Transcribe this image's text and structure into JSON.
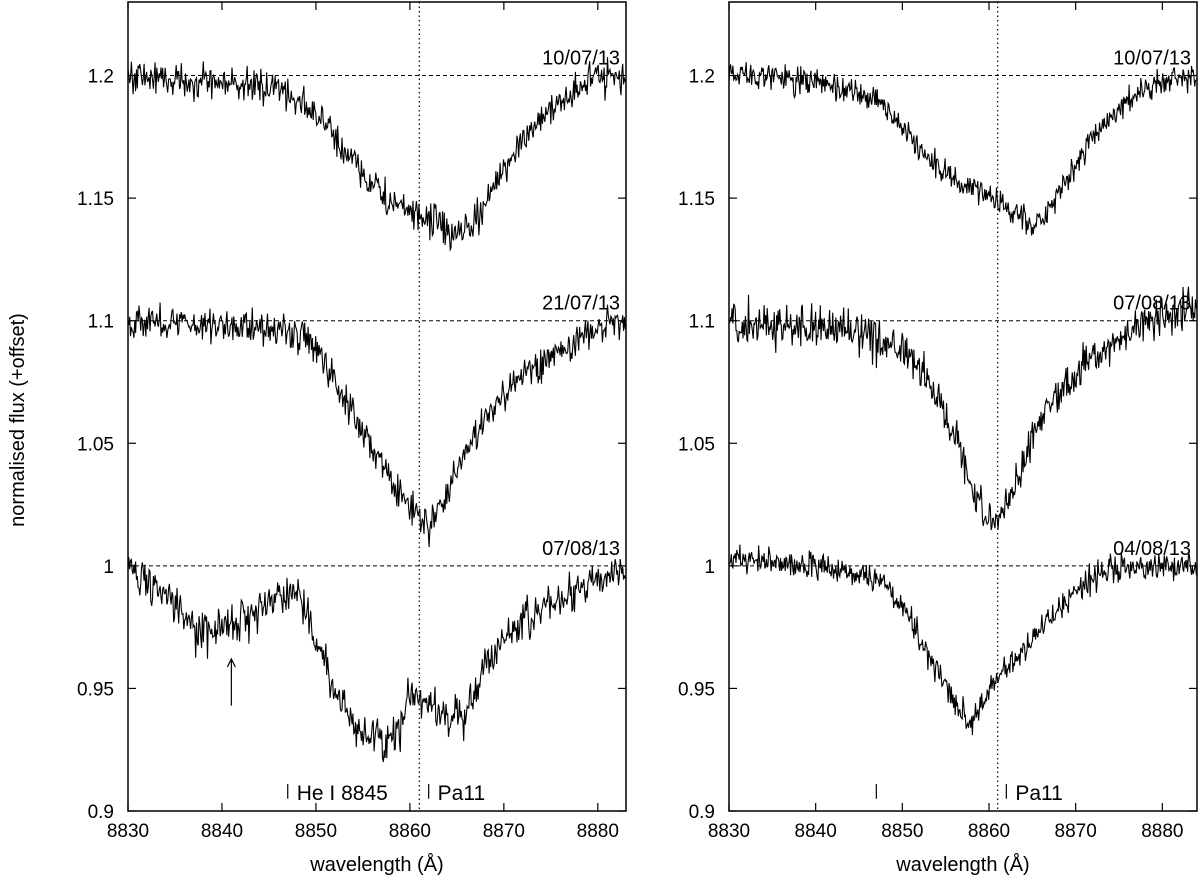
{
  "figure": {
    "ylabel": "normalised flux (+offset)"
  },
  "chart_data": [
    {
      "type": "line",
      "xlabel": "wavelength (Å)",
      "xlim": [
        8830,
        8883
      ],
      "ylim": [
        0.9,
        1.23
      ],
      "xticks": [
        8830,
        8840,
        8850,
        8860,
        8870,
        8880
      ],
      "yticks": [
        0.9,
        0.95,
        1.0,
        1.05,
        1.1,
        1.15,
        1.2
      ],
      "ytick_labels": [
        "0.9",
        "0.95",
        "1",
        "1.05",
        "1.1",
        "1.15",
        "1.2"
      ],
      "reference_lines_y": [
        1.0,
        1.1,
        1.2
      ],
      "vline_x": 8861.0,
      "line_markers": [
        {
          "x": 8847,
          "label": "He I 8845"
        },
        {
          "x": 8862,
          "label": "Pa11"
        }
      ],
      "arrow": {
        "x": 8841,
        "y_from": 0.943,
        "y_to": 0.962
      },
      "series": [
        {
          "name": "10/07/13",
          "offset": 1.2,
          "profile": [
            [
              8830,
              0.0
            ],
            [
              8846,
              -0.005
            ],
            [
              8849,
              -0.012
            ],
            [
              8852,
              -0.025
            ],
            [
              8855,
              -0.04
            ],
            [
              8858,
              -0.052
            ],
            [
              8861,
              -0.058
            ],
            [
              8863,
              -0.06
            ],
            [
              8865,
              -0.066
            ],
            [
              8867,
              -0.06
            ],
            [
              8869,
              -0.045
            ],
            [
              8872,
              -0.025
            ],
            [
              8876,
              -0.01
            ],
            [
              8879,
              -0.002
            ],
            [
              8883,
              0.0
            ]
          ],
          "noise": 0.005
        },
        {
          "name": "21/07/13",
          "offset": 1.1,
          "profile": [
            [
              8830,
              0.0
            ],
            [
              8847,
              -0.003
            ],
            [
              8850,
              -0.012
            ],
            [
              8853,
              -0.03
            ],
            [
              8856,
              -0.052
            ],
            [
              8859,
              -0.072
            ],
            [
              8861,
              -0.08
            ],
            [
              8862,
              -0.085
            ],
            [
              8863,
              -0.078
            ],
            [
              8865,
              -0.06
            ],
            [
              8868,
              -0.04
            ],
            [
              8872,
              -0.022
            ],
            [
              8877,
              -0.01
            ],
            [
              8880,
              -0.003
            ],
            [
              8883,
              0.0
            ]
          ],
          "noise": 0.005
        },
        {
          "name": "07/08/13",
          "offset": 1.0,
          "profile": [
            [
              8830,
              0.0
            ],
            [
              8834,
              -0.012
            ],
            [
              8837,
              -0.027
            ],
            [
              8839,
              -0.028
            ],
            [
              8842,
              -0.022
            ],
            [
              8846,
              -0.012
            ],
            [
              8848,
              -0.01
            ],
            [
              8850,
              -0.03
            ],
            [
              8852,
              -0.052
            ],
            [
              8855,
              -0.068
            ],
            [
              8857,
              -0.072
            ],
            [
              8859,
              -0.065
            ],
            [
              8860,
              -0.052
            ],
            [
              8862,
              -0.055
            ],
            [
              8864,
              -0.06
            ],
            [
              8866,
              -0.062
            ],
            [
              8868,
              -0.04
            ],
            [
              8871,
              -0.025
            ],
            [
              8875,
              -0.015
            ],
            [
              8879,
              -0.008
            ],
            [
              8883,
              0.0
            ]
          ],
          "noise": 0.006
        }
      ]
    },
    {
      "type": "line",
      "xlabel": "wavelength (Å)",
      "xlim": [
        8830,
        8884
      ],
      "ylim": [
        0.9,
        1.23
      ],
      "xticks": [
        8830,
        8840,
        8850,
        8860,
        8870,
        8880
      ],
      "yticks": [
        0.9,
        0.95,
        1.0,
        1.05,
        1.1,
        1.15,
        1.2
      ],
      "ytick_labels": [
        "0.9",
        "0.95",
        "1",
        "1.05",
        "1.1",
        "1.15",
        "1.2"
      ],
      "reference_lines_y": [
        1.0,
        1.1,
        1.2
      ],
      "vline_x": 8861.0,
      "line_markers": [
        {
          "x": 8847,
          "label": ""
        },
        {
          "x": 8862,
          "label": "Pa11"
        }
      ],
      "series": [
        {
          "name": "10/07/13",
          "offset": 1.2,
          "profile": [
            [
              8830,
              0.002
            ],
            [
              8840,
              -0.003
            ],
            [
              8847,
              -0.01
            ],
            [
              8850,
              -0.02
            ],
            [
              8853,
              -0.035
            ],
            [
              8857,
              -0.045
            ],
            [
              8860,
              -0.05
            ],
            [
              8863,
              -0.055
            ],
            [
              8865,
              -0.062
            ],
            [
              8867,
              -0.055
            ],
            [
              8869,
              -0.042
            ],
            [
              8872,
              -0.025
            ],
            [
              8876,
              -0.01
            ],
            [
              8880,
              -0.002
            ],
            [
              8884,
              0.0
            ]
          ],
          "noise": 0.004
        },
        {
          "name": "07/08/13",
          "offset": 1.1,
          "profile": [
            [
              8830,
              0.0
            ],
            [
              8845,
              -0.005
            ],
            [
              8850,
              -0.012
            ],
            [
              8853,
              -0.025
            ],
            [
              8856,
              -0.045
            ],
            [
              8858,
              -0.068
            ],
            [
              8860,
              -0.08
            ],
            [
              8862,
              -0.075
            ],
            [
              8864,
              -0.06
            ],
            [
              8865,
              -0.045
            ],
            [
              8868,
              -0.03
            ],
            [
              8872,
              -0.015
            ],
            [
              8876,
              -0.005
            ],
            [
              8880,
              0.003
            ],
            [
              8884,
              0.005
            ]
          ],
          "noise": 0.006
        },
        {
          "name": "04/08/13",
          "offset": 1.0,
          "profile": [
            [
              8830,
              0.003
            ],
            [
              8844,
              -0.002
            ],
            [
              8848,
              -0.008
            ],
            [
              8851,
              -0.022
            ],
            [
              8854,
              -0.042
            ],
            [
              8856,
              -0.055
            ],
            [
              8858,
              -0.065
            ],
            [
              8859,
              -0.058
            ],
            [
              8860,
              -0.05
            ],
            [
              8862,
              -0.042
            ],
            [
              8865,
              -0.03
            ],
            [
              8868,
              -0.018
            ],
            [
              8871,
              -0.008
            ],
            [
              8875,
              0.0
            ],
            [
              8884,
              0.0
            ]
          ],
          "noise": 0.004
        }
      ]
    }
  ]
}
